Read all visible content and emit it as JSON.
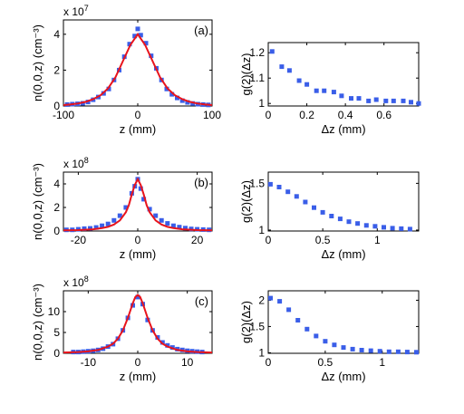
{
  "chart_data": [
    {
      "type": "scatter",
      "panel_label": "(a)",
      "xlabel": "z (mm)",
      "ylabel": "n(0,0,z) (cm⁻³)",
      "y_exponent": "x 10^7",
      "xlim": [
        -100,
        100
      ],
      "ylim": [
        0,
        4.8
      ],
      "xticks": [
        -100,
        0,
        100
      ],
      "yticks": [
        0,
        2,
        4
      ],
      "series": [
        {
          "kind": "points",
          "x": [
            -95,
            -88,
            -81,
            -74,
            -67,
            -60,
            -53,
            -46,
            -39,
            -32,
            -25,
            -18,
            -11,
            -4,
            0,
            4,
            11,
            18,
            25,
            32,
            39,
            46,
            53,
            60,
            67,
            74,
            81,
            88,
            95
          ],
          "y": [
            0.08,
            0.1,
            0.12,
            0.15,
            0.22,
            0.35,
            0.5,
            0.7,
            0.95,
            1.45,
            2.0,
            2.75,
            3.45,
            3.9,
            4.3,
            3.95,
            3.5,
            2.8,
            2.1,
            1.45,
            0.95,
            0.65,
            0.45,
            0.3,
            0.2,
            0.14,
            0.1,
            0.08,
            0.06
          ]
        },
        {
          "kind": "fit",
          "x": [
            -100,
            -90,
            -80,
            -70,
            -60,
            -50,
            -40,
            -30,
            -20,
            -10,
            0,
            10,
            20,
            30,
            40,
            50,
            60,
            70,
            80,
            90,
            100
          ],
          "y": [
            0.05,
            0.09,
            0.14,
            0.23,
            0.38,
            0.6,
            0.98,
            1.6,
            2.5,
            3.4,
            4.0,
            3.4,
            2.5,
            1.6,
            0.98,
            0.6,
            0.38,
            0.23,
            0.14,
            0.09,
            0.05
          ]
        }
      ]
    },
    {
      "type": "scatter",
      "xlabel": "Δz (mm)",
      "ylabel": "g(2)(Δz)",
      "xlim": [
        0,
        0.78
      ],
      "ylim": [
        0.99,
        1.24
      ],
      "xticks": [
        0,
        0.2,
        0.4,
        0.6
      ],
      "yticks": [
        1,
        1.1,
        1.2
      ],
      "series": [
        {
          "kind": "points",
          "x": [
            0.02,
            0.07,
            0.11,
            0.16,
            0.2,
            0.25,
            0.29,
            0.34,
            0.38,
            0.43,
            0.47,
            0.52,
            0.56,
            0.61,
            0.65,
            0.7,
            0.74,
            0.78
          ],
          "y": [
            1.205,
            1.145,
            1.13,
            1.09,
            1.075,
            1.05,
            1.05,
            1.045,
            1.03,
            1.02,
            1.02,
            1.01,
            1.015,
            1.01,
            1.01,
            1.01,
            1.005,
            1.0
          ]
        }
      ]
    },
    {
      "type": "scatter",
      "panel_label": "(b)",
      "xlabel": "z (mm)",
      "ylabel": "n(0,0,z) (cm⁻³)",
      "y_exponent": "x 10^8",
      "xlim": [
        -25,
        25
      ],
      "ylim": [
        0,
        5.0
      ],
      "xticks": [
        -20,
        0,
        20
      ],
      "yticks": [
        0,
        2,
        4
      ],
      "series": [
        {
          "kind": "points",
          "x": [
            -24,
            -22,
            -20,
            -18,
            -16,
            -14,
            -12,
            -10,
            -8,
            -6,
            -4,
            -2,
            -1,
            0,
            1,
            2,
            4,
            6,
            8,
            10,
            12,
            14,
            16,
            18,
            20,
            22,
            24
          ],
          "y": [
            0.1,
            0.1,
            0.15,
            0.2,
            0.22,
            0.3,
            0.45,
            0.6,
            0.9,
            1.3,
            2.0,
            3.2,
            3.8,
            4.4,
            3.6,
            2.7,
            1.85,
            1.3,
            0.9,
            0.65,
            0.45,
            0.33,
            0.25,
            0.18,
            0.15,
            0.12,
            0.1
          ]
        },
        {
          "kind": "fit",
          "x": [
            -25,
            -20,
            -15,
            -12,
            -10,
            -8,
            -6,
            -4,
            -3,
            -2,
            -1,
            0,
            1,
            2,
            3,
            4,
            6,
            8,
            10,
            12,
            15,
            20,
            25
          ],
          "y": [
            0.05,
            0.08,
            0.15,
            0.25,
            0.35,
            0.55,
            0.9,
            1.6,
            2.2,
            3.1,
            3.9,
            4.4,
            3.9,
            3.1,
            2.2,
            1.6,
            0.9,
            0.55,
            0.35,
            0.25,
            0.15,
            0.08,
            0.05
          ]
        }
      ]
    },
    {
      "type": "scatter",
      "xlabel": "Δz (mm)",
      "ylabel": "g(2)(Δz)",
      "xlim": [
        0,
        1.38
      ],
      "ylim": [
        0.99,
        1.62
      ],
      "xticks": [
        0,
        0.5,
        1
      ],
      "yticks": [
        1,
        1.5
      ],
      "series": [
        {
          "kind": "points",
          "x": [
            0.02,
            0.1,
            0.18,
            0.26,
            0.34,
            0.42,
            0.5,
            0.58,
            0.66,
            0.74,
            0.82,
            0.9,
            0.98,
            1.06,
            1.14,
            1.22,
            1.3
          ],
          "y": [
            1.49,
            1.46,
            1.41,
            1.36,
            1.3,
            1.24,
            1.19,
            1.15,
            1.12,
            1.09,
            1.07,
            1.05,
            1.04,
            1.03,
            1.02,
            1.015,
            1.01
          ]
        }
      ]
    },
    {
      "type": "scatter",
      "panel_label": "(c)",
      "xlabel": "z (mm)",
      "ylabel": "n(0,0,z) (cm⁻³)",
      "y_exponent": "x 10^8",
      "xlim": [
        -15,
        15
      ],
      "ylim": [
        0,
        15
      ],
      "xticks": [
        -10,
        0,
        10
      ],
      "yticks": [
        0,
        5,
        10
      ],
      "series": [
        {
          "kind": "points",
          "x": [
            -13,
            -12,
            -11,
            -10,
            -9,
            -8,
            -7,
            -6,
            -5,
            -4,
            -3,
            -2,
            -1,
            0,
            1,
            2,
            3,
            4,
            5,
            6,
            7,
            8,
            9,
            10,
            11,
            12,
            13
          ],
          "y": [
            0.3,
            0.3,
            0.4,
            0.5,
            0.6,
            0.8,
            1.1,
            1.6,
            2.2,
            3.5,
            5.5,
            8.5,
            11.5,
            13.5,
            11.8,
            8.0,
            5.5,
            3.8,
            2.6,
            1.9,
            1.4,
            1.0,
            0.8,
            0.6,
            0.5,
            0.4,
            0.3
          ]
        },
        {
          "kind": "fit",
          "x": [
            -15,
            -12,
            -10,
            -8,
            -6,
            -5,
            -4,
            -3,
            -2,
            -1,
            -0.5,
            0,
            0.5,
            1,
            2,
            3,
            4,
            5,
            6,
            8,
            10,
            12,
            15
          ],
          "y": [
            0.2,
            0.3,
            0.45,
            0.8,
            1.6,
            2.3,
            3.5,
            5.5,
            8.5,
            12.0,
            13.5,
            14.0,
            13.5,
            12.0,
            8.5,
            5.5,
            3.5,
            2.3,
            1.6,
            0.8,
            0.45,
            0.3,
            0.2
          ]
        }
      ]
    },
    {
      "type": "scatter",
      "xlabel": "Δz (mm)",
      "ylabel": "g(2)(Δz)",
      "xlim": [
        0,
        1.32
      ],
      "ylim": [
        0.99,
        2.18
      ],
      "xticks": [
        0,
        0.5,
        1
      ],
      "yticks": [
        1,
        1.5,
        2
      ],
      "series": [
        {
          "kind": "points",
          "x": [
            0.02,
            0.1,
            0.18,
            0.26,
            0.34,
            0.42,
            0.5,
            0.58,
            0.66,
            0.74,
            0.82,
            0.9,
            0.98,
            1.06,
            1.14,
            1.22,
            1.3
          ],
          "y": [
            2.04,
            1.98,
            1.82,
            1.62,
            1.45,
            1.32,
            1.22,
            1.15,
            1.1,
            1.07,
            1.05,
            1.04,
            1.03,
            1.02,
            1.02,
            1.015,
            1.01
          ]
        }
      ]
    }
  ]
}
